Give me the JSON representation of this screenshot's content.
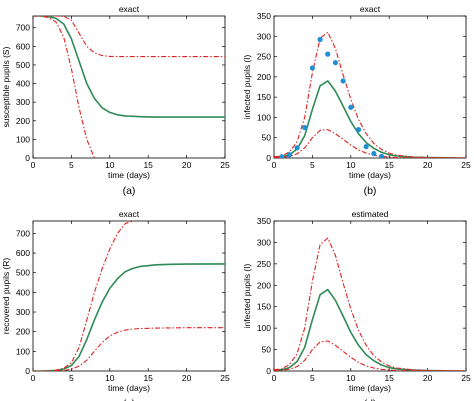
{
  "colors": {
    "main": "#2e8b57",
    "bound": "#dd2222",
    "points": "#1f8fd6",
    "axis": "#000000"
  },
  "chart_data": [
    {
      "type": "line",
      "title": "exact",
      "panel_label": "(a)",
      "xlabel": "time (days)",
      "ylabel": "susceptible pupils (S)",
      "xlim": [
        0,
        25
      ],
      "ylim": [
        0,
        763
      ],
      "xticks": [
        0,
        5,
        10,
        15,
        20,
        25
      ],
      "yticks": [
        0,
        100,
        200,
        300,
        400,
        500,
        600,
        700
      ],
      "grid": false,
      "series": [
        {
          "style": "solid",
          "color": "main",
          "x": [
            0,
            1,
            2,
            3,
            4,
            5,
            6,
            7,
            8,
            9,
            10,
            11,
            12,
            14,
            16,
            18,
            20,
            25
          ],
          "y": [
            763,
            763,
            760,
            750,
            720,
            640,
            520,
            400,
            320,
            270,
            245,
            232,
            226,
            222,
            220,
            220,
            220,
            220
          ]
        },
        {
          "style": "dashdot",
          "color": "bound",
          "x": [
            0,
            2,
            3,
            4,
            5,
            6,
            7,
            8,
            9,
            10,
            12,
            15,
            20,
            25
          ],
          "y": [
            763,
            763,
            763,
            762,
            740,
            670,
            600,
            565,
            550,
            546,
            545,
            545,
            545,
            545
          ]
        },
        {
          "style": "dashdot",
          "color": "bound",
          "x": [
            0,
            1,
            2,
            3,
            4,
            5,
            6,
            7,
            8
          ],
          "y": [
            763,
            762,
            755,
            730,
            650,
            480,
            270,
            100,
            0
          ]
        }
      ]
    },
    {
      "type": "line",
      "title": "exact",
      "panel_label": "(b)",
      "xlabel": "time (days)",
      "ylabel": "infected pupils (I)",
      "xlim": [
        0,
        25
      ],
      "ylim": [
        0,
        350
      ],
      "xticks": [
        0,
        5,
        10,
        15,
        20,
        25
      ],
      "yticks": [
        0,
        50,
        100,
        150,
        200,
        250,
        300,
        350
      ],
      "grid": false,
      "series": [
        {
          "style": "solid",
          "color": "main",
          "x": [
            0,
            1,
            2,
            3,
            4,
            5,
            6,
            7,
            8,
            9,
            10,
            11,
            12,
            13,
            14,
            15,
            16,
            18,
            20,
            25
          ],
          "y": [
            2,
            3,
            8,
            22,
            55,
            120,
            178,
            190,
            165,
            128,
            90,
            60,
            38,
            24,
            14,
            8,
            5,
            2,
            1,
            0
          ]
        },
        {
          "style": "dashdot",
          "color": "bound",
          "x": [
            0,
            1,
            2,
            3,
            4,
            5,
            6,
            7,
            8,
            9,
            10,
            11,
            12,
            13,
            14,
            15,
            16,
            18,
            20,
            25
          ],
          "y": [
            3,
            5,
            15,
            40,
            100,
            210,
            295,
            310,
            270,
            205,
            145,
            95,
            60,
            36,
            21,
            12,
            7,
            3,
            1,
            0
          ]
        },
        {
          "style": "dashdot",
          "color": "bound",
          "x": [
            0,
            1,
            2,
            3,
            4,
            5,
            6,
            7,
            8,
            9,
            10,
            11,
            12,
            13,
            14,
            16,
            20,
            25
          ],
          "y": [
            1,
            2,
            4,
            10,
            25,
            50,
            68,
            70,
            60,
            46,
            32,
            20,
            12,
            7,
            4,
            1,
            0,
            0
          ]
        },
        {
          "style": "points",
          "color": "points",
          "x": [
            1,
            2,
            3,
            4,
            5,
            6,
            7,
            8,
            9,
            10,
            11,
            12,
            13,
            14
          ],
          "y": [
            3,
            8,
            25,
            75,
            222,
            292,
            256,
            235,
            190,
            125,
            70,
            28,
            11,
            4
          ]
        }
      ]
    },
    {
      "type": "line",
      "title": "exact",
      "panel_label": "(c)",
      "xlabel": "time (days)",
      "ylabel": "recovered pupils (R)",
      "xlim": [
        0,
        25
      ],
      "ylim": [
        0,
        763
      ],
      "xticks": [
        0,
        5,
        10,
        15,
        20,
        25
      ],
      "yticks": [
        0,
        100,
        200,
        300,
        400,
        500,
        600,
        700
      ],
      "grid": false,
      "series": [
        {
          "style": "solid",
          "color": "main",
          "x": [
            0,
            1,
            2,
            3,
            4,
            5,
            6,
            7,
            8,
            9,
            10,
            11,
            12,
            13,
            14,
            16,
            18,
            20,
            25
          ],
          "y": [
            0,
            0,
            1,
            3,
            10,
            28,
            75,
            160,
            260,
            350,
            420,
            470,
            505,
            522,
            532,
            540,
            543,
            544,
            545
          ]
        },
        {
          "style": "dashdot",
          "color": "bound",
          "x": [
            0,
            1,
            2,
            3,
            4,
            5,
            6,
            7,
            8,
            9,
            10,
            11,
            12,
            13
          ],
          "y": [
            0,
            0,
            1,
            4,
            14,
            42,
            120,
            260,
            400,
            520,
            620,
            700,
            750,
            763
          ]
        },
        {
          "style": "dashdot",
          "color": "bound",
          "x": [
            0,
            1,
            2,
            3,
            4,
            5,
            6,
            7,
            8,
            9,
            10,
            11,
            12,
            13,
            14,
            16,
            18,
            20,
            25
          ],
          "y": [
            0,
            0,
            0,
            1,
            3,
            9,
            25,
            55,
            100,
            145,
            178,
            198,
            208,
            213,
            216,
            218,
            219,
            220,
            220
          ]
        }
      ]
    },
    {
      "type": "line",
      "title": "estimated",
      "panel_label": "(d)",
      "xlabel": "time (days)",
      "ylabel": "infected pupils (I)",
      "xlim": [
        0,
        25
      ],
      "ylim": [
        0,
        350
      ],
      "xticks": [
        0,
        5,
        10,
        15,
        20,
        25
      ],
      "yticks": [
        0,
        50,
        100,
        150,
        200,
        250,
        300,
        350
      ],
      "grid": false,
      "series": [
        {
          "style": "solid",
          "color": "main",
          "x": [
            0,
            1,
            2,
            3,
            4,
            5,
            6,
            7,
            8,
            9,
            10,
            11,
            12,
            13,
            14,
            15,
            16,
            18,
            20,
            25
          ],
          "y": [
            2,
            3,
            8,
            22,
            55,
            120,
            178,
            190,
            165,
            128,
            90,
            60,
            38,
            24,
            14,
            8,
            5,
            2,
            1,
            0
          ]
        },
        {
          "style": "dashdot",
          "color": "bound",
          "x": [
            0,
            1,
            2,
            3,
            4,
            5,
            6,
            7,
            8,
            9,
            10,
            11,
            12,
            13,
            14,
            15,
            16,
            18,
            20,
            25
          ],
          "y": [
            3,
            5,
            15,
            40,
            100,
            210,
            295,
            310,
            270,
            205,
            145,
            95,
            60,
            36,
            21,
            12,
            7,
            3,
            1,
            0
          ]
        },
        {
          "style": "dashdot",
          "color": "bound",
          "x": [
            0,
            1,
            2,
            3,
            4,
            5,
            6,
            7,
            8,
            9,
            10,
            11,
            12,
            13,
            14,
            16,
            20,
            25
          ],
          "y": [
            1,
            2,
            4,
            10,
            25,
            50,
            68,
            70,
            60,
            46,
            32,
            20,
            12,
            7,
            4,
            1,
            0,
            0
          ]
        }
      ]
    }
  ]
}
